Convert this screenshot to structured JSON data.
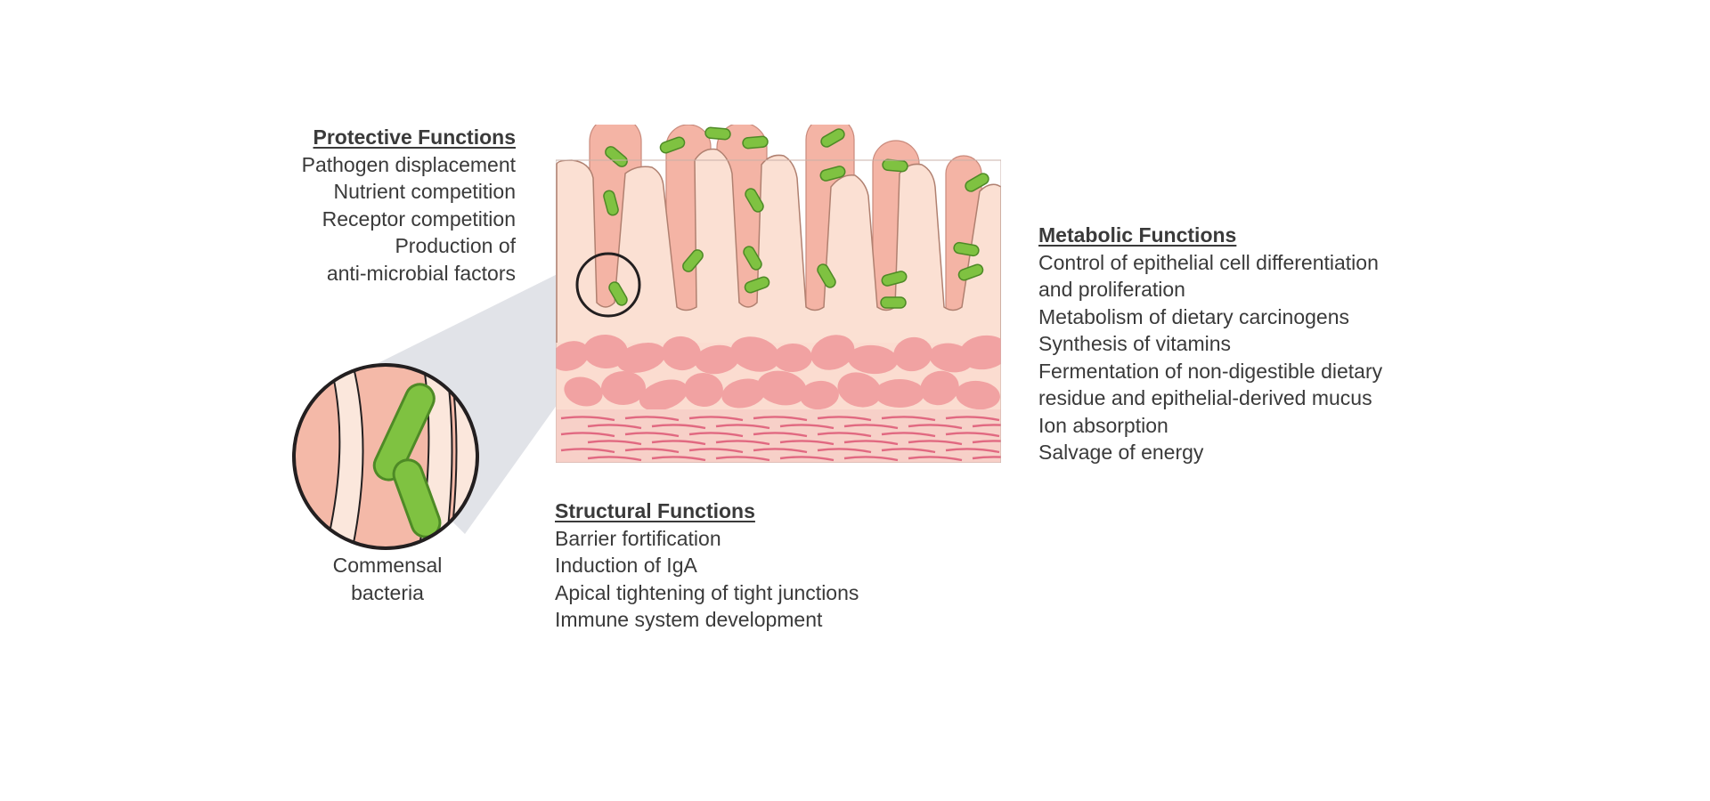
{
  "protective": {
    "title": "Protective Functions",
    "items": [
      "Pathogen displacement",
      "Nutrient competition",
      "Receptor competition",
      "Production of",
      "anti-microbial factors"
    ]
  },
  "metabolic": {
    "title": "Metabolic Functions",
    "items": [
      "Control of epithelial cell differentiation",
      "and proliferation",
      "Metabolism of dietary carcinogens",
      "Synthesis of vitamins",
      "Fermentation of non-digestible dietary",
      "residue and epithelial-derived mucus",
      "Ion absorption",
      "Salvage of energy"
    ]
  },
  "structural": {
    "title": "Structural Functions",
    "items": [
      "Barrier fortification",
      "Induction of IgA",
      "Apical tightening of tight junctions",
      "Immune system development"
    ]
  },
  "inset": {
    "label_lines": [
      "Commensal",
      "bacteria"
    ]
  },
  "colors": {
    "bacteria": "#7fc241",
    "bacteria_outline": "#4e8a26",
    "villus_front": "#fbe0d3",
    "villus_back": "#f4b4a5",
    "cells": "#f1a2a2",
    "muscle": "#d9476a",
    "outline": "#231f20"
  }
}
